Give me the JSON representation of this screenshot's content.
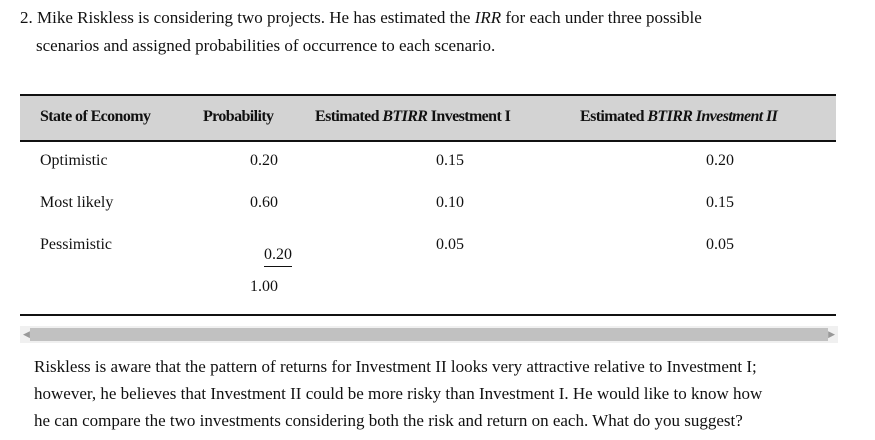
{
  "question": {
    "number": "2.",
    "line1_pre": "Mike Riskless is considering two projects. He has estimated the ",
    "line1_em": "IRR",
    "line1_post": " for each under three possible",
    "line2": "scenarios and assigned probabilities of occurrence to each scenario."
  },
  "table": {
    "headers": {
      "state": "State of Economy",
      "probability": "Probability",
      "inv1_pre": "Estimated ",
      "inv1_em": "BTIRR",
      "inv1_post": " Investment I",
      "inv2_pre": "Estimated ",
      "inv2_em": "BTIRR Investment II"
    },
    "rows": [
      {
        "state": "Optimistic",
        "probability": "0.20",
        "inv1": "0.15",
        "inv2": "0.20"
      },
      {
        "state": "Most likely",
        "probability": "0.60",
        "inv1": "0.10",
        "inv2": "0.15"
      },
      {
        "state": "Pessimistic",
        "probability": "0.20",
        "inv1": "0.05",
        "inv2": "0.05"
      }
    ],
    "total": "1.00"
  },
  "scrollbar": {
    "left_icon": "arrow-left-icon",
    "right_icon": "arrow-right-icon"
  },
  "paragraph": {
    "line1": "Riskless is aware that the pattern of returns for Investment II looks very attractive relative to Investment I;",
    "line2": "however, he believes that Investment II could be more risky than Investment I. He would like to know how",
    "line3": "he can compare the two investments considering both the risk and return on each. What do you suggest?"
  }
}
